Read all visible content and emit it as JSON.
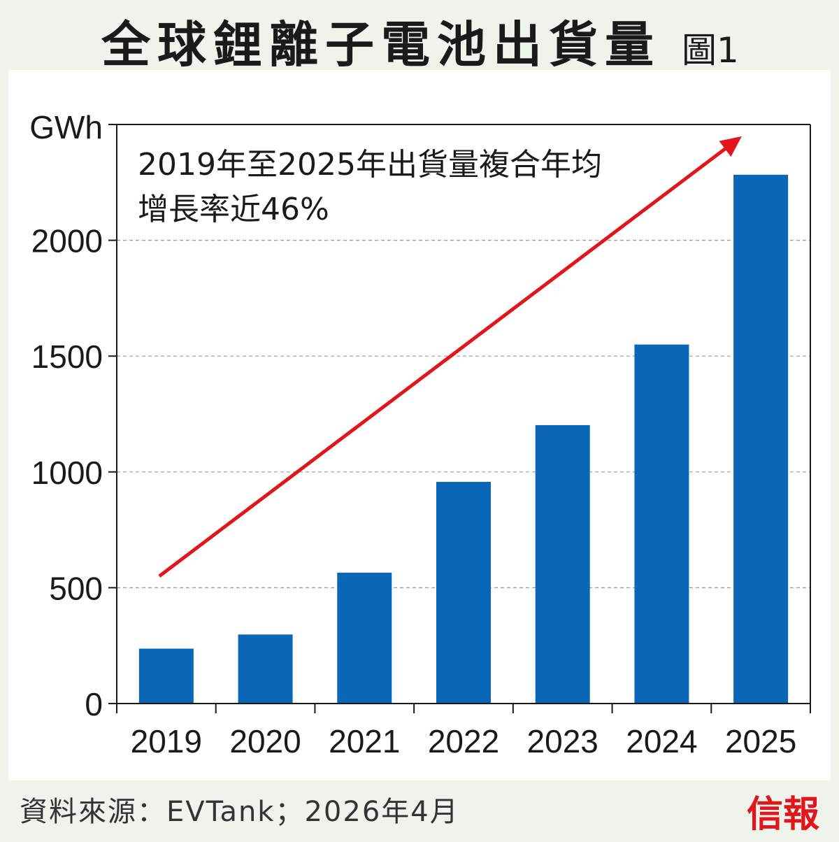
{
  "header": {
    "title": "全球鋰離子電池出貨量",
    "figure_label": "圖1"
  },
  "footer": {
    "source": "資料來源：EVTank；2026年4月",
    "logo": "信報"
  },
  "colors": {
    "bar": "#0a67b8",
    "arrow": "#e0161c",
    "grid": "#9a9a9a",
    "axis": "#1a1a1a",
    "panel_background": "#ffffff",
    "page_background": "#eef3ec"
  },
  "chart_data": {
    "type": "bar",
    "ylabel": "GWh",
    "categories": [
      "2019",
      "2020",
      "2021",
      "2022",
      "2023",
      "2024",
      "2025"
    ],
    "values": [
      237,
      298,
      565,
      957,
      1202,
      1550,
      2283
    ],
    "ylim": [
      0,
      2500
    ],
    "yticks": [
      "0",
      "500",
      "1000",
      "1500",
      "2000"
    ],
    "grid": "horizontal dashed",
    "annotation": {
      "lines": [
        "2019年至2025年出貨量複合年均",
        "增長率近46%"
      ],
      "arrow": "upward trend from 2019 to 2025"
    }
  }
}
